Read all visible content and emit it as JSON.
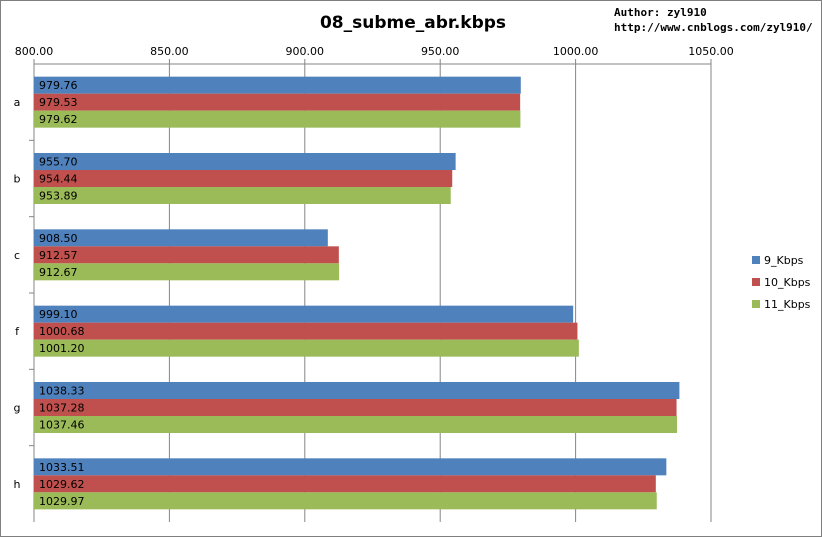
{
  "chart_data": {
    "type": "bar",
    "orientation": "horizontal",
    "title": "08_subme_abr.kbps",
    "author_line1": "Author: zyl910",
    "author_line2": "http://www.cnblogs.com/zyl910/",
    "xlim": [
      800,
      1050
    ],
    "x_ticks": [
      "800.00",
      "850.00",
      "900.00",
      "950.00",
      "1000.00",
      "1050.00"
    ],
    "x_tick_values": [
      800,
      850,
      900,
      950,
      1000,
      1050
    ],
    "x_axis_position": "top",
    "grid": true,
    "legend_position": "right",
    "categories": [
      "a",
      "b",
      "c",
      "f",
      "g",
      "h"
    ],
    "series": [
      {
        "name": "9_Kbps",
        "color": "#4f81bd",
        "values": [
          979.76,
          955.7,
          908.5,
          999.1,
          1038.33,
          1033.51
        ],
        "labels": [
          "979.76",
          "955.70",
          "908.50",
          "999.10",
          "1038.33",
          "1033.51"
        ]
      },
      {
        "name": "10_Kbps",
        "color": "#c0504d",
        "values": [
          979.53,
          954.44,
          912.57,
          1000.68,
          1037.28,
          1029.62
        ],
        "labels": [
          "979.53",
          "954.44",
          "912.57",
          "1000.68",
          "1037.28",
          "1029.62"
        ]
      },
      {
        "name": "11_Kbps",
        "color": "#9bbb59",
        "values": [
          979.62,
          953.89,
          912.67,
          1001.2,
          1037.46,
          1029.97
        ],
        "labels": [
          "979.62",
          "953.89",
          "912.67",
          "1001.20",
          "1037.46",
          "1029.97"
        ]
      }
    ]
  }
}
